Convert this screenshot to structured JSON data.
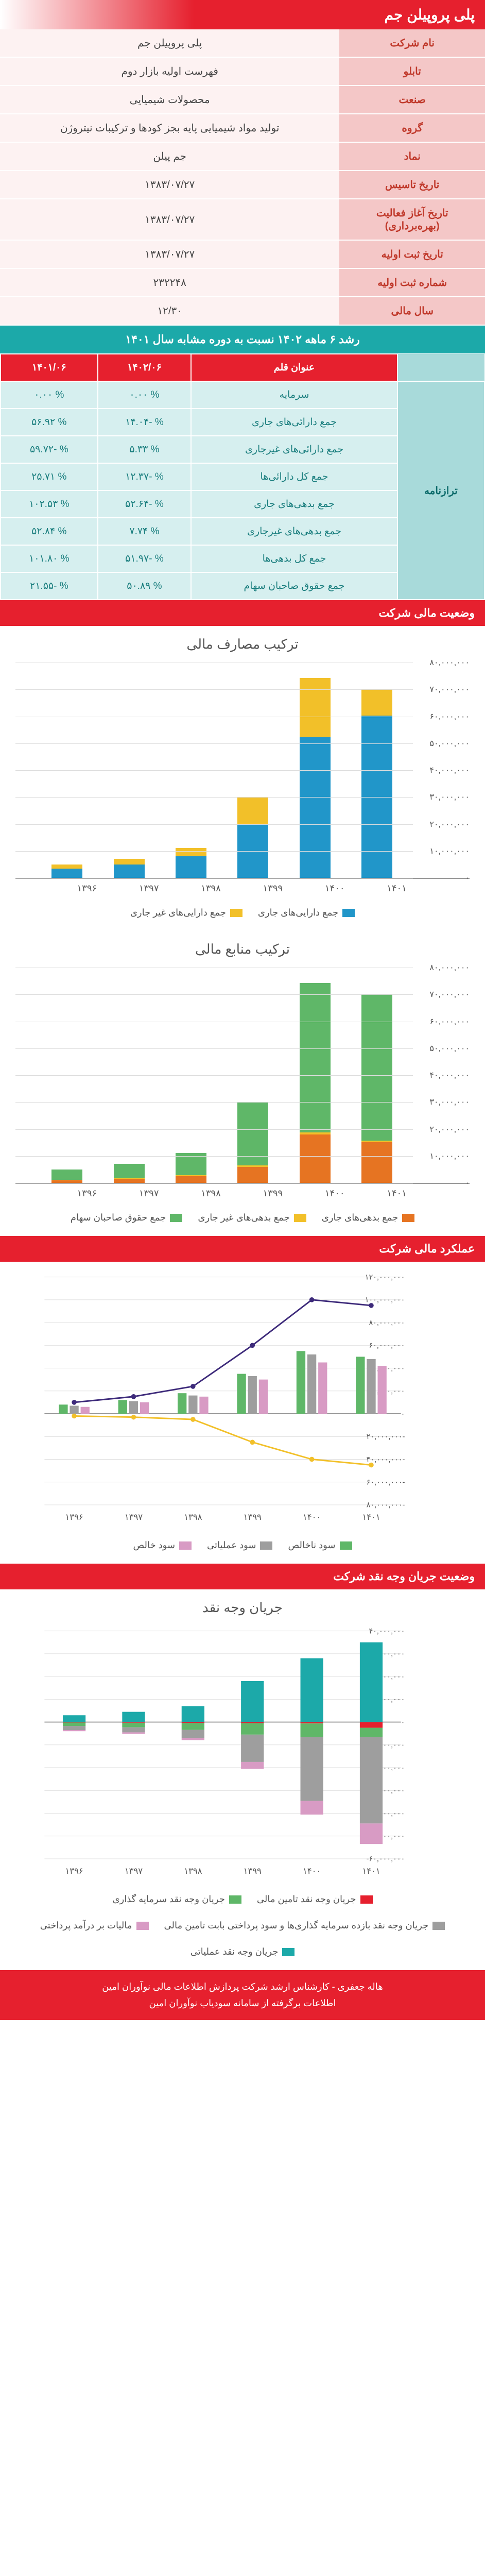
{
  "header": {
    "company_name": "پلی پروپیلن جم"
  },
  "info_rows": [
    {
      "label": "نام شرکت",
      "value": "پلی پروپیلن جم"
    },
    {
      "label": "تابلو",
      "value": "فهرست اولیه بازار دوم"
    },
    {
      "label": "صنعت",
      "value": "محصولات شیمیایی"
    },
    {
      "label": "گروه",
      "value": "تولید مواد شیمیایی پایه بجز کودها و ترکیبات نیتروژن"
    },
    {
      "label": "نماد",
      "value": "جم پیلن"
    },
    {
      "label": "تاریخ تاسیس",
      "value": "۱۳۸۳/۰۷/۲۷"
    },
    {
      "label": "تاریخ آغاز فعالیت (بهره‌برداری)",
      "value": "۱۳۸۳/۰۷/۲۷"
    },
    {
      "label": "تاریخ ثبت اولیه",
      "value": "۱۳۸۳/۰۷/۲۷"
    },
    {
      "label": "شماره ثبت اولیه",
      "value": "۲۳۲۲۴۸"
    },
    {
      "label": "سال مالی",
      "value": "۱۲/۳۰"
    }
  ],
  "growth": {
    "title": "رشد ۶ ماهه ۱۴۰۲ نسبت به دوره مشابه سال ۱۴۰۱",
    "col_headers": [
      "عنوان قلم",
      "۱۴۰۲/۰۶",
      "۱۴۰۱/۰۶"
    ],
    "side_label": "ترازنامه",
    "rows": [
      {
        "name": "سرمایه",
        "v1": "% ۰.۰۰",
        "v2": "% ۰.۰۰"
      },
      {
        "name": "جمع دارائی‌های جاری",
        "v1": "% -۱۴.۰۴",
        "v2": "% ۵۶.۹۲"
      },
      {
        "name": "جمع دارائی‌های غیرجاری",
        "v1": "% ۵.۳۳",
        "v2": "% -۵۹.۷۲"
      },
      {
        "name": "جمع کل دارائی‌ها",
        "v1": "% -۱۲.۳۷",
        "v2": "% ۲۵.۷۱"
      },
      {
        "name": "جمع بدهی‌های جاری",
        "v1": "% -۵۲.۶۴",
        "v2": "% ۱۰۲.۵۳"
      },
      {
        "name": "جمع بدهی‌های غیرجاری",
        "v1": "% ۷.۷۴",
        "v2": "% ۵۲.۸۴"
      },
      {
        "name": "جمع کل بدهی‌ها",
        "v1": "% -۵۱.۹۷",
        "v2": "% ۱۰۱.۸۰"
      },
      {
        "name": "جمع حقوق صاحبان سهام",
        "v1": "% ۵۰.۸۹",
        "v2": "% -۲۱.۵۵"
      }
    ]
  },
  "sections": {
    "financial_status": "وضعیت مالی شرکت",
    "financial_perf": "عملکرد مالی شرکت",
    "cash_flow": "وضعیت جریان وجه نقد شرکت"
  },
  "chart1": {
    "type": "stacked-bar",
    "title": "ترکیب مصارف مالی",
    "categories": [
      "۱۳۹۶",
      "۱۳۹۷",
      "۱۳۹۸",
      "۱۳۹۹",
      "۱۴۰۰",
      "۱۴۰۱"
    ],
    "ylim": [
      0,
      80000000
    ],
    "ytick_step": 10000000,
    "series": [
      {
        "name": "جمع دارایی‌های جاری",
        "color": "#2196c9",
        "data": [
          3500000,
          5000000,
          8000000,
          20000000,
          52000000,
          60000000
        ]
      },
      {
        "name": "جمع دارایی‌های غیر جاری",
        "color": "#f2c029",
        "data": [
          1500000,
          2000000,
          3000000,
          10000000,
          22000000,
          10000000
        ]
      }
    ],
    "y_format": [
      "۰",
      "۱۰,۰۰۰,۰۰۰",
      "۲۰,۰۰۰,۰۰۰",
      "۳۰,۰۰۰,۰۰۰",
      "۴۰,۰۰۰,۰۰۰",
      "۵۰,۰۰۰,۰۰۰",
      "۶۰,۰۰۰,۰۰۰",
      "۷۰,۰۰۰,۰۰۰",
      "۸۰,۰۰۰,۰۰۰"
    ]
  },
  "chart2": {
    "type": "stacked-bar",
    "title": "ترکیب منابع مالی",
    "categories": [
      "۱۳۹۶",
      "۱۳۹۷",
      "۱۳۹۸",
      "۱۳۹۹",
      "۱۴۰۰",
      "۱۴۰۱"
    ],
    "ylim": [
      0,
      80000000
    ],
    "ytick_step": 10000000,
    "series": [
      {
        "name": "جمع بدهی‌های جاری",
        "color": "#e67422",
        "data": [
          1000000,
          1500000,
          2500000,
          6000000,
          18000000,
          15000000
        ]
      },
      {
        "name": "جمع بدهی‌های غیر جاری",
        "color": "#f2c029",
        "data": [
          200000,
          300000,
          400000,
          500000,
          700000,
          600000
        ]
      },
      {
        "name": "جمع حقوق صاحبان سهام",
        "color": "#5fb768",
        "data": [
          3800000,
          5200000,
          8100000,
          23500000,
          55300000,
          54400000
        ]
      }
    ],
    "y_format": [
      "۰",
      "۱۰,۰۰۰,۰۰۰",
      "۲۰,۰۰۰,۰۰۰",
      "۳۰,۰۰۰,۰۰۰",
      "۴۰,۰۰۰,۰۰۰",
      "۵۰,۰۰۰,۰۰۰",
      "۶۰,۰۰۰,۰۰۰",
      "۷۰,۰۰۰,۰۰۰",
      "۸۰,۰۰۰,۰۰۰"
    ]
  },
  "chart3": {
    "type": "combo",
    "title": "",
    "categories": [
      "۱۳۹۶",
      "۱۳۹۷",
      "۱۳۹۸",
      "۱۳۹۹",
      "۱۴۰۰",
      "۱۴۰۱"
    ],
    "ylim": [
      -80000000,
      120000000
    ],
    "ytick_step": 20000000,
    "y_format": [
      "-۸۰,۰۰۰,۰۰۰",
      "-۶۰,۰۰۰,۰۰۰",
      "-۴۰,۰۰۰,۰۰۰",
      "-۲۰,۰۰۰,۰۰۰",
      "۰",
      "۲۰,۰۰۰,۰۰۰",
      "۴۰,۰۰۰,۰۰۰",
      "۶۰,۰۰۰,۰۰۰",
      "۸۰,۰۰۰,۰۰۰",
      "۱۰۰,۰۰۰,۰۰۰",
      "۱۲۰,۰۰۰,۰۰۰"
    ],
    "bars": [
      {
        "name": "سود ناخالص",
        "color": "#5fb768",
        "data": [
          8000000,
          12000000,
          18000000,
          35000000,
          55000000,
          50000000
        ]
      },
      {
        "name": "سود عملیاتی",
        "color": "#9e9e9e",
        "data": [
          7000000,
          11000000,
          16000000,
          33000000,
          52000000,
          48000000
        ]
      },
      {
        "name": "سود خالص",
        "color": "#d89bc4",
        "data": [
          6000000,
          10000000,
          15000000,
          30000000,
          45000000,
          42000000
        ]
      }
    ],
    "lines": [
      {
        "name": "line_top",
        "color": "#3d2a7a",
        "data": [
          10000000,
          15000000,
          24000000,
          60000000,
          100000000,
          95000000
        ]
      },
      {
        "name": "line_bottom",
        "color": "#f2c029",
        "data": [
          -2000000,
          -3000000,
          -5000000,
          -25000000,
          -40000000,
          -45000000
        ]
      }
    ],
    "legend_order": [
      "سود ناخالص",
      "سود عملیاتی",
      "سود خالص"
    ]
  },
  "chart4": {
    "type": "stacked-bar-neg",
    "title": "جریان وجه نقد",
    "categories": [
      "۱۳۹۶",
      "۱۳۹۷",
      "۱۳۹۸",
      "۱۳۹۹",
      "۱۴۰۰",
      "۱۴۰۱"
    ],
    "ylim": [
      -60000000,
      40000000
    ],
    "ytick_step": 10000000,
    "y_format": [
      "۶۰,۰۰۰,۰۰۰-",
      "۵۰,۰۰۰,۰۰۰-",
      "۴۰,۰۰۰,۰۰۰-",
      "۳۰,۰۰۰,۰۰۰-",
      "۲۰,۰۰۰,۰۰۰-",
      "۱۰,۰۰۰,۰۰۰-",
      "۰",
      "۱۰,۰۰۰,۰۰۰",
      "۲۰,۰۰۰,۰۰۰",
      "۳۰,۰۰۰,۰۰۰",
      "۴۰,۰۰۰,۰۰۰"
    ],
    "series": [
      {
        "name": "جریان وجه نقد تامین مالی",
        "color": "#e6202e",
        "data": [
          -200000,
          -300000,
          -400000,
          -500000,
          -600000,
          -2500000
        ]
      },
      {
        "name": "جریان وجه نقد سرمایه گذاری",
        "color": "#5fb768",
        "data": [
          -1500000,
          -2000000,
          -3000000,
          -5000000,
          -6000000,
          -4000000
        ]
      },
      {
        "name": "جریان وجه نقد بازده سرمایه گذاری‌ها و سود پرداختی بابت تامین مالی",
        "color": "#9e9e9e",
        "data": [
          -1800000,
          -2200000,
          -3500000,
          -12000000,
          -28000000,
          -38000000
        ]
      },
      {
        "name": "مالیات بر درآمد پرداختی",
        "color": "#d89bc4",
        "data": [
          -500000,
          -700000,
          -1000000,
          -3000000,
          -6000000,
          -9000000
        ]
      },
      {
        "name": "جریان وجه نقد عملیاتی",
        "color": "#1ca9a9",
        "data": [
          3000000,
          4500000,
          7000000,
          18000000,
          28000000,
          35000000
        ]
      }
    ]
  },
  "footer": {
    "line1": "هاله جعفری - کارشناس ارشد شرکت پردازش اطلاعات مالی نوآوران امین",
    "line2": "اطلاعات برگرفته از سامانه سودیاب نوآوران امین"
  },
  "colors": {
    "red": "#e6202e",
    "teal": "#1ca9a9",
    "grid": "#dddddd"
  }
}
